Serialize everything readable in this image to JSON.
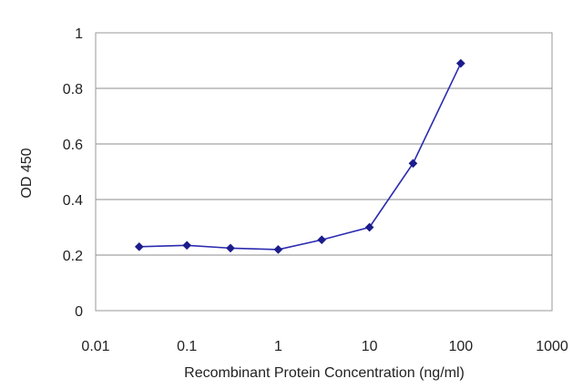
{
  "chart_data": {
    "type": "line",
    "title": "",
    "xlabel": "Recombinant Protein Concentration (ng/ml)",
    "ylabel": "OD 450",
    "x_scale": "log",
    "xlim": [
      0.01,
      1000
    ],
    "ylim": [
      0,
      1
    ],
    "x_ticks": [
      "0.01",
      "0.1",
      "1",
      "10",
      "100",
      "1000"
    ],
    "y_ticks": [
      "0",
      "0.2",
      "0.4",
      "0.6",
      "0.8",
      "1"
    ],
    "grid": "horizontal",
    "legend": "none",
    "series": [
      {
        "x": [
          0.03,
          0.1,
          0.3,
          1,
          3,
          10,
          30,
          100
        ],
        "y": [
          0.23,
          0.235,
          0.225,
          0.22,
          0.255,
          0.3,
          0.53,
          0.89
        ],
        "color": "#2b2bb0",
        "marker": "diamond"
      }
    ]
  }
}
